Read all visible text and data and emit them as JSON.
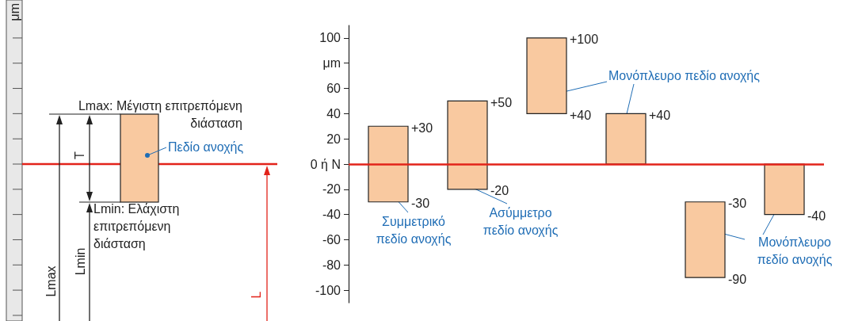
{
  "chart_data": {
    "type": "bar",
    "ylabel": "μm",
    "categories": [
      null,
      null,
      null,
      null,
      null,
      null
    ],
    "base": [
      -30,
      -20,
      40,
      0,
      -90,
      -40
    ],
    "values": [
      60,
      70,
      60,
      40,
      60,
      40
    ],
    "color": "#f9c9a0",
    "ylim": [
      -110,
      110
    ],
    "yticks": [
      -100,
      -80,
      -60,
      -40,
      -20,
      {
        "value": 0,
        "label": "0 ή N"
      },
      20,
      40,
      60,
      {
        "value": 80,
        "label": null
      },
      100
    ],
    "ref_lines": [
      {
        "axis": "y",
        "value": 0,
        "color": "#e2231a"
      }
    ],
    "annotations": [
      "μm",
      "Lmax: Μέγιστη επιτρεπόμενη διάσταση",
      "T",
      "Πεδίο ανοχής",
      "Lmin: Ελάχιστη επιτρεπόμενη διάσταση",
      "Lmax",
      "Lmin",
      "L",
      "Συμμετρικό πεδίο ανοχής",
      "Ασύμμετρο πεδίο ανοχής",
      "Μονόπλευρο πεδίο ανοχής",
      "Μονόπλευρο πεδίο ανοχής",
      "+30",
      "-30",
      "+50",
      "-20",
      "+100",
      "+40",
      "+40",
      "-30",
      "-90",
      "-40"
    ]
  }
}
